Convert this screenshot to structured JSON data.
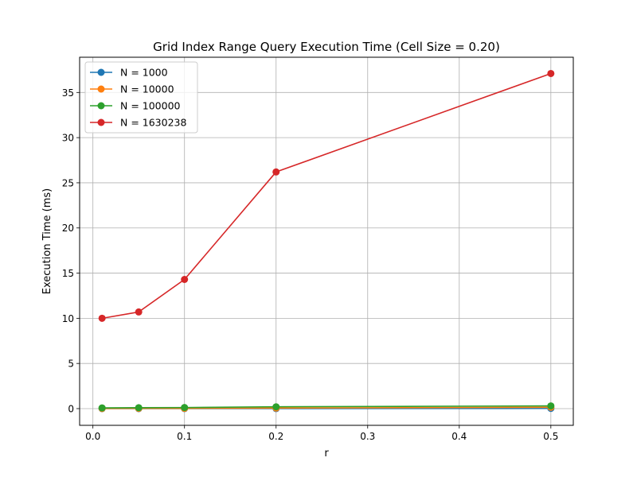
{
  "chart_data": {
    "type": "line",
    "title": "Grid Index Range Query Execution Time (Cell Size = 0.20)",
    "xlabel": "r",
    "ylabel": "Execution Time (ms)",
    "x": [
      0.01,
      0.05,
      0.1,
      0.2,
      0.5
    ],
    "xlim": [
      -0.0145,
      0.5245
    ],
    "ylim": [
      -1.85,
      38.9
    ],
    "xticks": [
      0.0,
      0.1,
      0.2,
      0.3,
      0.4,
      0.5
    ],
    "xtick_labels": [
      "0.0",
      "0.1",
      "0.2",
      "0.3",
      "0.4",
      "0.5"
    ],
    "yticks": [
      0,
      5,
      10,
      15,
      20,
      25,
      30,
      35
    ],
    "ytick_labels": [
      "0",
      "5",
      "10",
      "15",
      "20",
      "25",
      "30",
      "35"
    ],
    "grid": true,
    "legend_position": "top-left",
    "series": [
      {
        "name": "N = 1000",
        "color": "#1f77b4",
        "values": [
          0.002,
          0.003,
          0.004,
          0.006,
          0.02
        ]
      },
      {
        "name": "N = 10000",
        "color": "#ff7f0e",
        "values": [
          0.01,
          0.02,
          0.03,
          0.06,
          0.15
        ]
      },
      {
        "name": "N = 100000",
        "color": "#2ca02c",
        "values": [
          0.08,
          0.1,
          0.12,
          0.2,
          0.3
        ]
      },
      {
        "name": "N = 1630238",
        "color": "#d62728",
        "values": [
          10.0,
          10.7,
          14.3,
          26.2,
          37.1
        ]
      }
    ]
  }
}
